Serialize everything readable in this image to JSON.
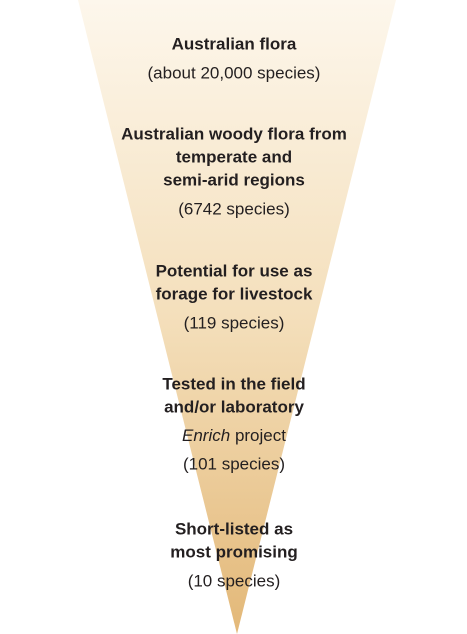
{
  "levels": [
    {
      "title": [
        "Australian flora"
      ],
      "detail": "(about 20,000 species)"
    },
    {
      "title": [
        "Australian woody flora from",
        "temperate and",
        "semi-arid regions"
      ],
      "detail": "(6742 species)"
    },
    {
      "title": [
        "Potential for use as",
        "forage for livestock"
      ],
      "detail": "(119 species)"
    },
    {
      "title": [
        "Tested in the field",
        "and/or laboratory"
      ],
      "note": {
        "emphasis": "Enrich",
        "text": "project"
      },
      "detail": "(101 species)"
    },
    {
      "title": [
        "Short-listed as",
        "most promising"
      ],
      "detail": "(10 species)"
    }
  ]
}
